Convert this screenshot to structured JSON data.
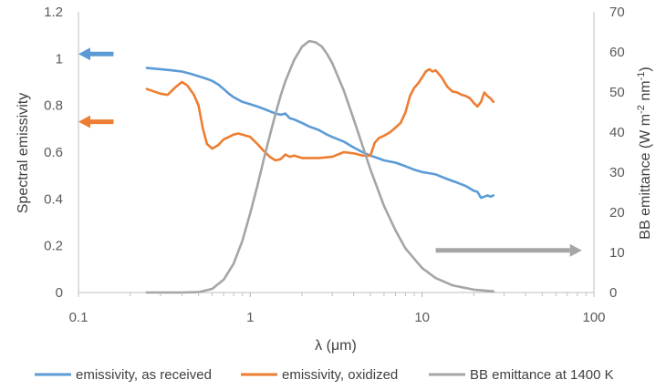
{
  "chart_data": {
    "type": "line",
    "title": "",
    "xlabel": "λ (μm)",
    "ylabel": "Spectral emissivity",
    "y2label_parts": {
      "main": "BB emittance (W m",
      "sup1": "-2",
      "mid": " nm",
      "sup2": "-1",
      "end": ")"
    },
    "x_scale": "log",
    "xlim": [
      0.1,
      100
    ],
    "ylim": [
      0,
      1.2
    ],
    "y2lim": [
      0,
      70
    ],
    "grid": false,
    "legend_position": "bottom",
    "x_ticks": [
      0.1,
      1,
      10,
      100
    ],
    "x_tick_labels": [
      "0.1",
      "1",
      "10",
      "100"
    ],
    "y_ticks": [
      0,
      0.2,
      0.4,
      0.6,
      0.8,
      1,
      1.2
    ],
    "y_tick_labels": [
      "0",
      "0.2",
      "0.4",
      "0.6",
      "0.8",
      "1",
      "1.2"
    ],
    "y2_ticks": [
      0,
      10,
      20,
      30,
      40,
      50,
      60,
      70
    ],
    "y2_tick_labels": [
      "0",
      "10",
      "20",
      "30",
      "40",
      "50",
      "60",
      "70"
    ],
    "series": [
      {
        "name": "emissivity, as received",
        "axis": "left",
        "color": "#5b9bd5",
        "x": [
          0.25,
          0.3,
          0.35,
          0.4,
          0.45,
          0.5,
          0.55,
          0.6,
          0.65,
          0.7,
          0.75,
          0.8,
          0.85,
          0.9,
          1.0,
          1.1,
          1.2,
          1.4,
          1.5,
          1.6,
          1.7,
          1.8,
          2.0,
          2.2,
          2.5,
          2.8,
          3.0,
          3.5,
          4.0,
          4.5,
          5.0,
          5.5,
          6.0,
          7.0,
          8.0,
          9.0,
          10.0,
          11.0,
          12.0,
          14.0,
          16.0,
          18.0,
          20.0,
          21.0,
          22.0,
          23.0,
          24.0,
          25.0,
          26.0
        ],
        "y": [
          0.96,
          0.955,
          0.95,
          0.945,
          0.935,
          0.925,
          0.915,
          0.905,
          0.89,
          0.87,
          0.85,
          0.835,
          0.825,
          0.815,
          0.805,
          0.795,
          0.785,
          0.765,
          0.76,
          0.765,
          0.745,
          0.74,
          0.725,
          0.71,
          0.695,
          0.675,
          0.665,
          0.645,
          0.62,
          0.6,
          0.585,
          0.575,
          0.565,
          0.555,
          0.54,
          0.525,
          0.515,
          0.51,
          0.505,
          0.485,
          0.47,
          0.455,
          0.435,
          0.43,
          0.405,
          0.41,
          0.415,
          0.41,
          0.415
        ]
      },
      {
        "name": "emissivity, oxidized",
        "axis": "left",
        "color": "#ed7d31",
        "x": [
          0.25,
          0.3,
          0.33,
          0.37,
          0.4,
          0.43,
          0.47,
          0.5,
          0.53,
          0.56,
          0.6,
          0.65,
          0.7,
          0.75,
          0.8,
          0.85,
          0.9,
          1.0,
          1.1,
          1.2,
          1.3,
          1.4,
          1.5,
          1.6,
          1.7,
          1.8,
          2.0,
          2.5,
          3.0,
          3.5,
          4.0,
          4.5,
          5.0,
          5.3,
          5.6,
          6.0,
          6.5,
          7.0,
          7.5,
          8.0,
          8.5,
          9.0,
          9.5,
          10.0,
          10.5,
          11.0,
          11.5,
          12.0,
          13.0,
          14.0,
          15.0,
          16.0,
          17.0,
          18.0,
          19.0,
          20.0,
          21.0,
          22.0,
          23.0,
          24.0,
          25.0,
          26.0
        ],
        "y": [
          0.87,
          0.85,
          0.845,
          0.88,
          0.9,
          0.885,
          0.845,
          0.8,
          0.7,
          0.635,
          0.615,
          0.63,
          0.655,
          0.665,
          0.675,
          0.68,
          0.675,
          0.665,
          0.635,
          0.605,
          0.58,
          0.565,
          0.57,
          0.59,
          0.58,
          0.585,
          0.575,
          0.575,
          0.58,
          0.6,
          0.595,
          0.585,
          0.585,
          0.64,
          0.66,
          0.67,
          0.685,
          0.705,
          0.725,
          0.77,
          0.84,
          0.875,
          0.895,
          0.92,
          0.945,
          0.955,
          0.945,
          0.95,
          0.92,
          0.88,
          0.86,
          0.855,
          0.845,
          0.84,
          0.83,
          0.81,
          0.795,
          0.815,
          0.855,
          0.84,
          0.83,
          0.815
        ]
      },
      {
        "name": "BB emittance at 1400 K",
        "axis": "right",
        "color": "#a5a5a5",
        "x": [
          0.25,
          0.4,
          0.5,
          0.6,
          0.7,
          0.8,
          0.9,
          1.0,
          1.1,
          1.2,
          1.3,
          1.4,
          1.5,
          1.6,
          1.8,
          2.0,
          2.2,
          2.4,
          2.6,
          2.8,
          3.0,
          3.5,
          4.0,
          4.5,
          5.0,
          6.0,
          7.0,
          8.0,
          10.0,
          12.0,
          15.0,
          20.0,
          26.0
        ],
        "y": [
          0,
          0,
          0.1,
          0.9,
          3.2,
          7.2,
          12.9,
          19.8,
          26.6,
          33.3,
          39.2,
          44.5,
          49.0,
          52.7,
          58.0,
          61.3,
          62.7,
          62.4,
          61.4,
          59.5,
          57.2,
          50.4,
          43.2,
          36.6,
          30.7,
          21.6,
          15.5,
          11.0,
          6.1,
          3.6,
          1.8,
          0.7,
          0.3
        ]
      }
    ],
    "annotations": [
      {
        "type": "arrow",
        "direction": "left",
        "color": "#5b9bd5",
        "x_from": 0.16,
        "x_to": 0.1,
        "y": 1.02,
        "axis": "left"
      },
      {
        "type": "arrow",
        "direction": "left",
        "color": "#ed7d31",
        "x_from": 0.16,
        "x_to": 0.1,
        "y": 0.73,
        "axis": "left"
      },
      {
        "type": "arrow",
        "direction": "right",
        "color": "#a5a5a5",
        "x_from": 12,
        "x_to": 85,
        "y": 10.5,
        "axis": "right"
      }
    ]
  }
}
